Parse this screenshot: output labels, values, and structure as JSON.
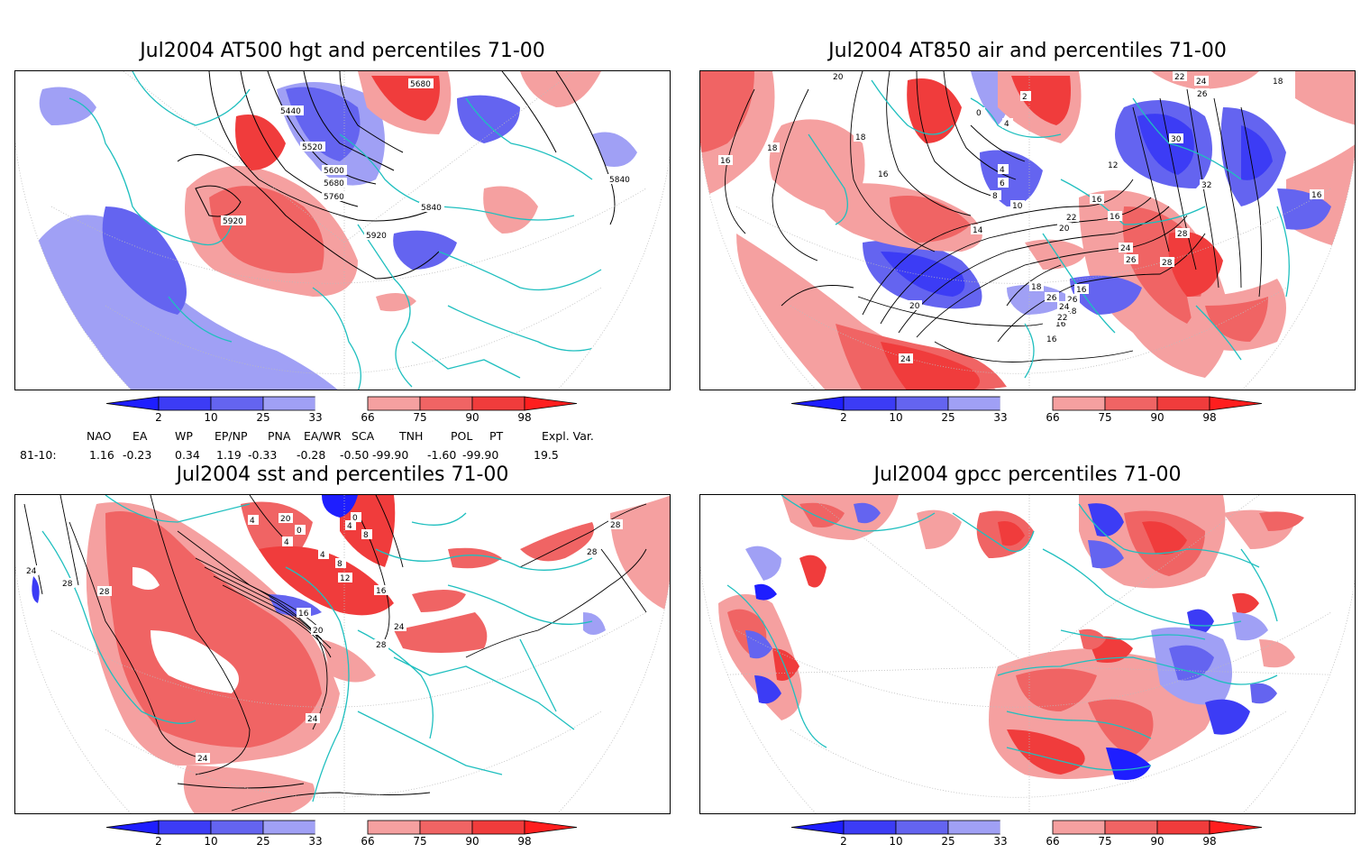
{
  "panels": [
    {
      "id": "p1",
      "title": "Jul2004 AT500 hgt and percentiles 71-00",
      "contour_labels": [
        "5440",
        "5520",
        "5600",
        "5680",
        "5760",
        "5840",
        "5920",
        "5920",
        "5680",
        "5840"
      ]
    },
    {
      "id": "p2",
      "title": "Jul2004 AT850 air and percentiles 71-00",
      "contour_labels": [
        "20",
        "18",
        "16",
        "18",
        "16",
        "14",
        "16",
        "16",
        "12",
        "10",
        "8",
        "6",
        "4",
        "4",
        "2",
        "0",
        "30",
        "26",
        "24",
        "22",
        "32",
        "16",
        "28",
        "28",
        "26",
        "24",
        "22",
        "20",
        "18",
        "16",
        "20",
        "24",
        "26",
        "28",
        "16",
        "16",
        "22",
        "24",
        "26",
        "18"
      ]
    },
    {
      "id": "p3",
      "title": "Jul2004 sst and percentiles 71-00",
      "contour_labels": [
        "24",
        "28",
        "28",
        "4",
        "20",
        "0",
        "4",
        "4",
        "8",
        "12",
        "16",
        "20",
        "24",
        "16",
        "24",
        "28",
        "28",
        "28",
        "24",
        "4",
        "8",
        "0"
      ]
    },
    {
      "id": "p4",
      "title": "Jul2004 gpcc percentiles 71-00",
      "contour_labels": []
    }
  ],
  "colorbar": {
    "ticks": [
      "2",
      "10",
      "25",
      "33",
      "66",
      "75",
      "90",
      "98"
    ],
    "colors": [
      "#1e1eff",
      "#3c3cf5",
      "#6464f0",
      "#a0a0f5",
      "#ffffff",
      "#f5a0a0",
      "#f06464",
      "#f03c3c",
      "#ff1e1e"
    ]
  },
  "indices": {
    "headers": [
      "NAO",
      "EA",
      "WP",
      "EP/NP",
      "PNA",
      "EA/WR",
      "SCA",
      "TNH",
      "POL",
      "PT",
      "Expl. Var."
    ],
    "row_label": "81-10:",
    "values": [
      "1.16",
      "-0.23",
      "0.34",
      "1.19",
      "-0.33",
      "-0.28",
      "-0.50",
      "-99.90",
      "-1.60",
      "-99.90",
      "19.5"
    ]
  }
}
